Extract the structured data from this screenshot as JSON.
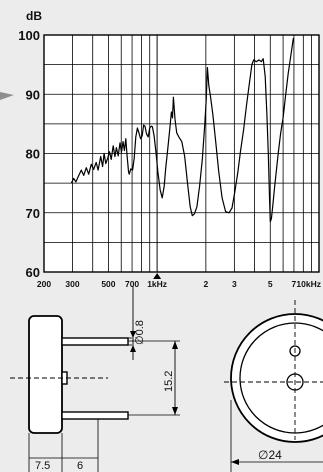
{
  "chart_data": {
    "type": "line",
    "ylabel": "dB",
    "ylim": [
      60,
      100
    ],
    "y_ticks": [
      60,
      70,
      80,
      90,
      100
    ],
    "x_scale": "log",
    "xlim_hz": [
      200,
      10000
    ],
    "x_ticks": [
      {
        "hz": 200,
        "label": "200"
      },
      {
        "hz": 300,
        "label": "300"
      },
      {
        "hz": 500,
        "label": "500"
      },
      {
        "hz": 700,
        "label": "700"
      },
      {
        "hz": 1000,
        "label": "1kHz"
      },
      {
        "hz": 2000,
        "label": "2"
      },
      {
        "hz": 3000,
        "label": "3"
      },
      {
        "hz": 5000,
        "label": "5"
      },
      {
        "hz": 7000,
        "label": "7"
      },
      {
        "hz": 10000,
        "label": "10kHz"
      }
    ],
    "marker_hz": 1000,
    "grid": true,
    "series": [
      {
        "points": [
          [
            295,
            75.0
          ],
          [
            305,
            75.8
          ],
          [
            315,
            75.2
          ],
          [
            328,
            76.3
          ],
          [
            340,
            77.2
          ],
          [
            352,
            76.3
          ],
          [
            365,
            77.6
          ],
          [
            378,
            76.5
          ],
          [
            392,
            78.2
          ],
          [
            405,
            77.3
          ],
          [
            420,
            78.5
          ],
          [
            432,
            77.2
          ],
          [
            448,
            79.5
          ],
          [
            460,
            77.8
          ],
          [
            470,
            80.0
          ],
          [
            482,
            78.3
          ],
          [
            495,
            79.2
          ],
          [
            508,
            80.3
          ],
          [
            520,
            79.0
          ],
          [
            535,
            81.3
          ],
          [
            548,
            79.5
          ],
          [
            560,
            81.0
          ],
          [
            575,
            79.6
          ],
          [
            590,
            81.8
          ],
          [
            602,
            80.2
          ],
          [
            615,
            82.0
          ],
          [
            628,
            80.5
          ],
          [
            640,
            82.5
          ],
          [
            652,
            79.6
          ],
          [
            665,
            77.0
          ],
          [
            672,
            76.5
          ],
          [
            688,
            77.4
          ],
          [
            705,
            77.2
          ],
          [
            722,
            79.2
          ],
          [
            738,
            82.8
          ],
          [
            755,
            84.3
          ],
          [
            772,
            83.5
          ],
          [
            790,
            82.5
          ],
          [
            808,
            83.0
          ],
          [
            825,
            84.8
          ],
          [
            842,
            84.6
          ],
          [
            860,
            83.3
          ],
          [
            880,
            82.8
          ],
          [
            900,
            84.3
          ],
          [
            918,
            84.6
          ],
          [
            935,
            84.5
          ],
          [
            958,
            83.0
          ],
          [
            985,
            80.0
          ],
          [
            1010,
            77.0
          ],
          [
            1045,
            73.8
          ],
          [
            1075,
            72.5
          ],
          [
            1105,
            74.5
          ],
          [
            1130,
            77.5
          ],
          [
            1160,
            80.5
          ],
          [
            1195,
            84.0
          ],
          [
            1225,
            87.0
          ],
          [
            1245,
            86.0
          ],
          [
            1260,
            89.5
          ],
          [
            1290,
            85.8
          ],
          [
            1320,
            83.5
          ],
          [
            1360,
            82.8
          ],
          [
            1420,
            82.0
          ],
          [
            1480,
            79.5
          ],
          [
            1540,
            75.0
          ],
          [
            1600,
            71.0
          ],
          [
            1650,
            69.5
          ],
          [
            1700,
            69.8
          ],
          [
            1760,
            71.0
          ],
          [
            1830,
            74.5
          ],
          [
            1900,
            79.0
          ],
          [
            1965,
            84.5
          ],
          [
            2010,
            89.0
          ],
          [
            2045,
            94.5
          ],
          [
            2085,
            91.5
          ],
          [
            2140,
            89.5
          ],
          [
            2210,
            86.5
          ],
          [
            2300,
            82.0
          ],
          [
            2400,
            77.0
          ],
          [
            2520,
            72.5
          ],
          [
            2650,
            70.2
          ],
          [
            2780,
            70.0
          ],
          [
            2900,
            70.8
          ],
          [
            3020,
            73.5
          ],
          [
            3150,
            76.8
          ],
          [
            3280,
            80.5
          ],
          [
            3420,
            84.0
          ],
          [
            3560,
            88.0
          ],
          [
            3720,
            92.0
          ],
          [
            3850,
            95.0
          ],
          [
            3950,
            95.8
          ],
          [
            4100,
            95.5
          ],
          [
            4250,
            95.8
          ],
          [
            4400,
            95.5
          ],
          [
            4520,
            96.0
          ],
          [
            4650,
            93.0
          ],
          [
            4760,
            87.0
          ],
          [
            4860,
            80.0
          ],
          [
            4950,
            72.0
          ],
          [
            5000,
            68.5
          ],
          [
            5080,
            69.0
          ],
          [
            5180,
            71.2
          ],
          [
            5300,
            74.0
          ],
          [
            5450,
            77.0
          ],
          [
            5600,
            80.0
          ],
          [
            5800,
            83.5
          ],
          [
            6000,
            86.0
          ],
          [
            6200,
            89.5
          ],
          [
            6450,
            93.5
          ],
          [
            6700,
            96.5
          ],
          [
            6950,
            99.5
          ]
        ]
      }
    ]
  },
  "dimensions": {
    "pin_diameter": "∅0.8",
    "pin_spacing": "15.2",
    "body_height": "7.5",
    "pin_length": "6",
    "body_diameter": "∅24"
  }
}
